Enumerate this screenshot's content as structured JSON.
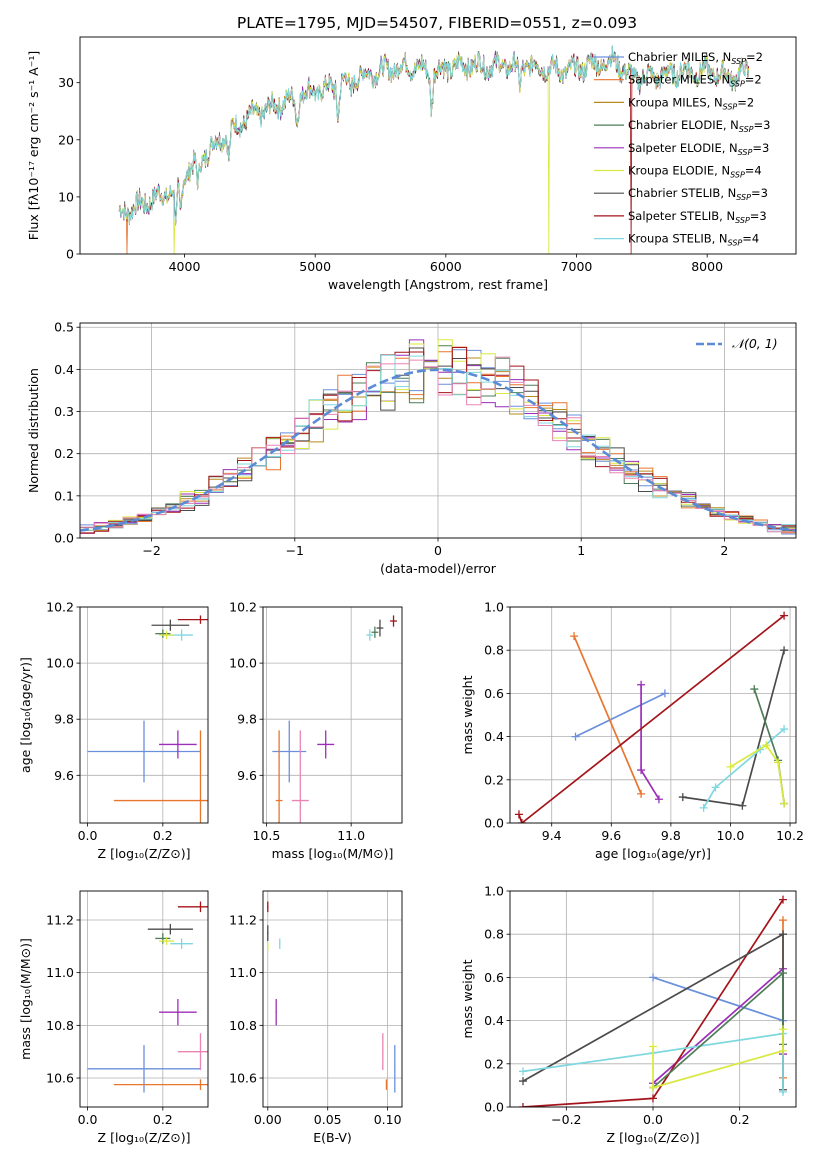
{
  "figure": {
    "title": "PLATE=1795, MJD=54507, FIBERID=0551, z=0.093"
  },
  "colors": {
    "Chabrier MILES": "#6a8fdc",
    "Salpeter MILES": "#e8752e",
    "Kroupa MILES": "#b98a1e",
    "Chabrier ELODIE": "#4e7d58",
    "Salpeter ELODIE": "#9c2fb7",
    "Kroupa ELODIE": "#d9e83f",
    "Chabrier STELIB": "#4b4b4b",
    "Salpeter STELIB": "#a4141b",
    "Kroupa STELIB": "#7fd8df",
    "pink": "#e985b4",
    "green_light": "#8fe36f",
    "normal_curve": "#5b8bd6"
  },
  "chart_data": [
    {
      "id": "spectrum",
      "type": "line",
      "xlabel": "wavelength [Angstrom, rest frame]",
      "ylabel": "Flux [fλ10⁻¹⁷ erg cm⁻² s⁻¹ A⁻¹]",
      "xlim": [
        3200,
        8680
      ],
      "ylim": [
        0,
        38
      ],
      "xticks": [
        4000,
        5000,
        6000,
        7000,
        8000
      ],
      "yticks": [
        0,
        10,
        20,
        30
      ],
      "grid": true,
      "legend_position": "top-right",
      "legend": [
        "Chabrier MILES, N_SSP=2",
        "Salpeter MILES, N_SSP=2",
        "Kroupa MILES, N_SSP=2",
        "Chabrier ELODIE, N_SSP=3",
        "Salpeter ELODIE, N_SSP=3",
        "Kroupa ELODIE, N_SSP=4",
        "Chabrier STELIB, N_SSP=3",
        "Salpeter STELIB, N_SSP=3",
        "Kroupa STELIB, N_SSP=4"
      ],
      "continuum": {
        "x": [
          3500,
          3700,
          3900,
          4000,
          4100,
          4300,
          4500,
          4700,
          4900,
          5100,
          5300,
          5500,
          5700,
          5900,
          6100,
          6300,
          6500,
          6700,
          6900,
          7100,
          7300,
          7400,
          7600,
          7800,
          8000,
          8200,
          8300
        ],
        "y": [
          7,
          9,
          11,
          14,
          16,
          21,
          24,
          26,
          28,
          29,
          31,
          32,
          33,
          32,
          33,
          33,
          33,
          33,
          32,
          33,
          34,
          31,
          31,
          32,
          32,
          31,
          32
        ]
      },
      "features": [
        {
          "x": 3934,
          "depth": 7
        },
        {
          "x": 3969,
          "depth": 6
        },
        {
          "x": 4102,
          "depth": 4
        },
        {
          "x": 4340,
          "depth": 5
        },
        {
          "x": 4861,
          "depth": 4
        },
        {
          "x": 5175,
          "depth": 5
        },
        {
          "x": 5270,
          "depth": 3
        },
        {
          "x": 5890,
          "depth": 6
        },
        {
          "x": 6563,
          "depth": 4
        }
      ],
      "cutoffs": [
        {
          "series": "Salpeter MILES",
          "x": 3560
        },
        {
          "series": "Kroupa ELODIE",
          "x": 3920
        },
        {
          "series": "Kroupa ELODIE",
          "x": 6790
        },
        {
          "series": "Salpeter STELIB",
          "x": 7420
        }
      ]
    },
    {
      "id": "residuals",
      "type": "histogram",
      "xlabel": "(data-model)/error",
      "ylabel": "Normed distribution",
      "xlim": [
        -2.5,
        2.5
      ],
      "ylim": [
        0,
        0.51
      ],
      "xticks": [
        -2,
        -1,
        0,
        1,
        2
      ],
      "yticks": [
        0.0,
        0.1,
        0.2,
        0.3,
        0.4,
        0.5
      ],
      "grid": true,
      "legend_position": "top-right",
      "normal_label": "𝒩(0, 1)",
      "bin_width": 0.1,
      "bin_start": -2.5
    },
    {
      "id": "age_vs_Z",
      "type": "errorbar",
      "xlabel": "Z [log₁₀(Z/Z⊙)]",
      "ylabel": "age  [log₁₀(age/yr)]",
      "xlim": [
        -0.02,
        0.32
      ],
      "ylim": [
        9.43,
        10.2
      ],
      "xticks": [
        0.0,
        0.2
      ],
      "yticks": [
        9.6,
        9.8,
        10.0,
        10.2
      ],
      "points": [
        {
          "series": "Chabrier MILES",
          "x": 0.15,
          "xerr": 0.15,
          "y": 9.685,
          "yerr": 0.11
        },
        {
          "series": "Salpeter MILES",
          "x": 0.3,
          "xerr": 0.23,
          "y": 9.51,
          "yerr": 0.25
        },
        {
          "series": "Salpeter ELODIE",
          "x": 0.24,
          "xerr": 0.05,
          "y": 9.71,
          "yerr": 0.05
        },
        {
          "series": "Chabrier STELIB",
          "x": 0.22,
          "xerr": 0.05,
          "y": 10.135,
          "yerr": 0.02
        },
        {
          "series": "Salpeter STELIB",
          "x": 0.3,
          "xerr": 0.06,
          "y": 10.155,
          "yerr": 0.015
        },
        {
          "series": "Kroupa STELIB",
          "x": 0.25,
          "xerr": 0.03,
          "y": 10.1,
          "yerr": 0.02
        },
        {
          "series": "Chabrier ELODIE",
          "x": 0.2,
          "xerr": 0.02,
          "y": 10.105,
          "yerr": 0.015
        },
        {
          "series": "Kroupa ELODIE",
          "x": 0.21,
          "xerr": 0.02,
          "y": 10.1,
          "yerr": 0.015
        }
      ]
    },
    {
      "id": "age_vs_mass",
      "type": "errorbar",
      "xlabel": "mass [log₁₀(M/M⊙)]",
      "ylabel": "",
      "xlim": [
        10.48,
        11.3
      ],
      "ylim": [
        9.43,
        10.2
      ],
      "xticks": [
        10.5,
        11.0
      ],
      "yticks": [
        9.6,
        9.8,
        10.0,
        10.2
      ],
      "points": [
        {
          "series": "Chabrier MILES",
          "x": 10.635,
          "xerr": 0.1,
          "y": 9.685,
          "yerr": 0.11
        },
        {
          "series": "Salpeter MILES",
          "x": 10.575,
          "xerr": 0.02,
          "y": 9.51,
          "yerr": 0.25
        },
        {
          "series": "pink",
          "x": 10.7,
          "xerr": 0.05,
          "y": 9.51,
          "yerr": 0.25
        },
        {
          "series": "Salpeter ELODIE",
          "x": 10.85,
          "xerr": 0.05,
          "y": 9.71,
          "yerr": 0.05
        },
        {
          "series": "Chabrier STELIB",
          "x": 11.17,
          "xerr": 0.02,
          "y": 10.125,
          "yerr": 0.03
        },
        {
          "series": "Salpeter STELIB",
          "x": 11.25,
          "xerr": 0.02,
          "y": 10.15,
          "yerr": 0.02
        },
        {
          "series": "Kroupa STELIB",
          "x": 11.11,
          "xerr": 0.02,
          "y": 10.1,
          "yerr": 0.02
        },
        {
          "series": "Chabrier ELODIE",
          "x": 11.14,
          "xerr": 0.02,
          "y": 10.11,
          "yerr": 0.02
        }
      ]
    },
    {
      "id": "weight_vs_age",
      "type": "line",
      "xlabel": "age  [log₁₀(age/yr)]",
      "ylabel": "mass weight",
      "xlim": [
        9.26,
        10.22
      ],
      "ylim": [
        0,
        1.0
      ],
      "xticks": [
        9.4,
        9.6,
        9.8,
        10.0,
        10.2
      ],
      "yticks": [
        0.0,
        0.2,
        0.4,
        0.6,
        0.8,
        1.0
      ],
      "grid": true,
      "series": [
        {
          "name": "Chabrier MILES",
          "x": [
            9.48,
            9.78
          ],
          "y": [
            0.4,
            0.6
          ]
        },
        {
          "name": "Salpeter MILES",
          "x": [
            9.475,
            9.7
          ],
          "y": [
            0.865,
            0.135
          ]
        },
        {
          "name": "Salpeter ELODIE",
          "x": [
            9.7,
            9.7,
            9.76
          ],
          "y": [
            0.64,
            0.245,
            0.11
          ]
        },
        {
          "name": "Salpeter STELIB",
          "x": [
            9.29,
            9.3,
            10.18
          ],
          "y": [
            0.04,
            0.0,
            0.96
          ]
        },
        {
          "name": "Chabrier STELIB",
          "x": [
            9.84,
            10.04,
            10.18
          ],
          "y": [
            0.12,
            0.08,
            0.8
          ]
        },
        {
          "name": "Kroupa STELIB",
          "x": [
            9.91,
            9.95,
            10.1,
            10.18
          ],
          "y": [
            0.07,
            0.165,
            0.34,
            0.435
          ]
        },
        {
          "name": "Chabrier ELODIE",
          "x": [
            10.08,
            10.16,
            10.18
          ],
          "y": [
            0.62,
            0.29,
            0.09
          ]
        },
        {
          "name": "Kroupa ELODIE",
          "x": [
            10.0,
            10.12,
            10.16,
            10.18
          ],
          "y": [
            0.26,
            0.36,
            0.28,
            0.09
          ]
        }
      ]
    },
    {
      "id": "mass_vs_Z",
      "type": "errorbar",
      "xlabel": "Z [log₁₀(Z/Z⊙)]",
      "ylabel": "mass [log₁₀(M/M⊙)]",
      "xlim": [
        -0.02,
        0.32
      ],
      "ylim": [
        10.49,
        11.31
      ],
      "xticks": [
        0.0,
        0.2
      ],
      "yticks": [
        10.6,
        10.8,
        11.0,
        11.2
      ],
      "points": [
        {
          "series": "Chabrier MILES",
          "x": 0.15,
          "xerr": 0.15,
          "y": 10.635,
          "yerr": 0.09
        },
        {
          "series": "Salpeter MILES",
          "x": 0.3,
          "xerr": 0.23,
          "y": 10.575,
          "yerr": 0.02
        },
        {
          "series": "pink",
          "x": 0.3,
          "xerr": 0.06,
          "y": 10.7,
          "yerr": 0.07
        },
        {
          "series": "Salpeter ELODIE",
          "x": 0.24,
          "xerr": 0.05,
          "y": 10.85,
          "yerr": 0.05
        },
        {
          "series": "Chabrier STELIB",
          "x": 0.22,
          "xerr": 0.06,
          "y": 11.165,
          "yerr": 0.02
        },
        {
          "series": "Salpeter STELIB",
          "x": 0.3,
          "xerr": 0.06,
          "y": 11.25,
          "yerr": 0.02
        },
        {
          "series": "Kroupa STELIB",
          "x": 0.25,
          "xerr": 0.03,
          "y": 11.11,
          "yerr": 0.02
        },
        {
          "series": "Chabrier ELODIE",
          "x": 0.2,
          "xerr": 0.02,
          "y": 11.13,
          "yerr": 0.02
        },
        {
          "series": "Kroupa ELODIE",
          "x": 0.21,
          "xerr": 0.02,
          "y": 11.12,
          "yerr": 0.015
        }
      ]
    },
    {
      "id": "mass_vs_ebv",
      "type": "errorbar",
      "xlabel": "E(B-V)",
      "ylabel": "",
      "xlim": [
        -0.004,
        0.112
      ],
      "ylim": [
        10.49,
        11.31
      ],
      "xticks": [
        0.0,
        0.05,
        0.1
      ],
      "yticks": [
        10.6,
        10.8,
        11.0,
        11.2
      ],
      "points": [
        {
          "series": "Salpeter STELIB",
          "x": 0.0,
          "xerr": 0.0005,
          "y": 11.25,
          "yerr": 0.02
        },
        {
          "series": "Chabrier STELIB",
          "x": 0.0,
          "xerr": 0.0005,
          "y": 11.15,
          "yerr": 0.03
        },
        {
          "series": "Kroupa ELODIE",
          "x": 0.0,
          "xerr": 0.0005,
          "y": 11.1,
          "yerr": 0.015
        },
        {
          "series": "Kroupa STELIB",
          "x": 0.01,
          "xerr": 0.0005,
          "y": 11.11,
          "yerr": 0.02
        },
        {
          "series": "Salpeter ELODIE",
          "x": 0.007,
          "xerr": 0.0005,
          "y": 10.85,
          "yerr": 0.05
        },
        {
          "series": "pink",
          "x": 0.096,
          "xerr": 0.0005,
          "y": 10.7,
          "yerr": 0.07
        },
        {
          "series": "Salpeter MILES",
          "x": 0.099,
          "xerr": 0.0005,
          "y": 10.575,
          "yerr": 0.02
        },
        {
          "series": "Chabrier MILES",
          "x": 0.106,
          "xerr": 0.0005,
          "y": 10.635,
          "yerr": 0.09
        }
      ]
    },
    {
      "id": "weight_vs_Z",
      "type": "line",
      "xlabel": "Z [log₁₀(Z/Z⊙)]",
      "ylabel": "mass weight",
      "xlim": [
        -0.33,
        0.33
      ],
      "ylim": [
        0,
        1.0
      ],
      "xticks": [
        -0.2,
        0.0,
        0.2
      ],
      "yticks": [
        0.0,
        0.2,
        0.4,
        0.6,
        0.8,
        1.0
      ],
      "grid": true,
      "series": [
        {
          "name": "Chabrier MILES",
          "x": [
            0.0,
            0.3
          ],
          "y": [
            0.6,
            0.4
          ]
        },
        {
          "name": "Salpeter MILES",
          "x": [
            0.3,
            0.3
          ],
          "y": [
            0.865,
            0.135
          ]
        },
        {
          "name": "Salpeter ELODIE",
          "x": [
            0.0,
            0.3,
            0.3
          ],
          "y": [
            0.11,
            0.64,
            0.245
          ]
        },
        {
          "name": "Salpeter STELIB",
          "x": [
            -0.3,
            0.0,
            0.3
          ],
          "y": [
            0.0,
            0.04,
            0.96
          ]
        },
        {
          "name": "Chabrier STELIB",
          "x": [
            -0.3,
            0.3,
            0.3
          ],
          "y": [
            0.12,
            0.8,
            0.08
          ]
        },
        {
          "name": "Kroupa STELIB",
          "x": [
            -0.3,
            0.0,
            0.3,
            0.3
          ],
          "y": [
            0.165,
            0.25,
            0.34,
            0.07
          ]
        },
        {
          "name": "Chabrier ELODIE",
          "x": [
            0.0,
            0.3,
            0.3
          ],
          "y": [
            0.09,
            0.62,
            0.29
          ]
        },
        {
          "name": "Kroupa ELODIE",
          "x": [
            0.0,
            0.0,
            0.3,
            0.3
          ],
          "y": [
            0.28,
            0.09,
            0.26,
            0.36
          ]
        }
      ]
    }
  ]
}
